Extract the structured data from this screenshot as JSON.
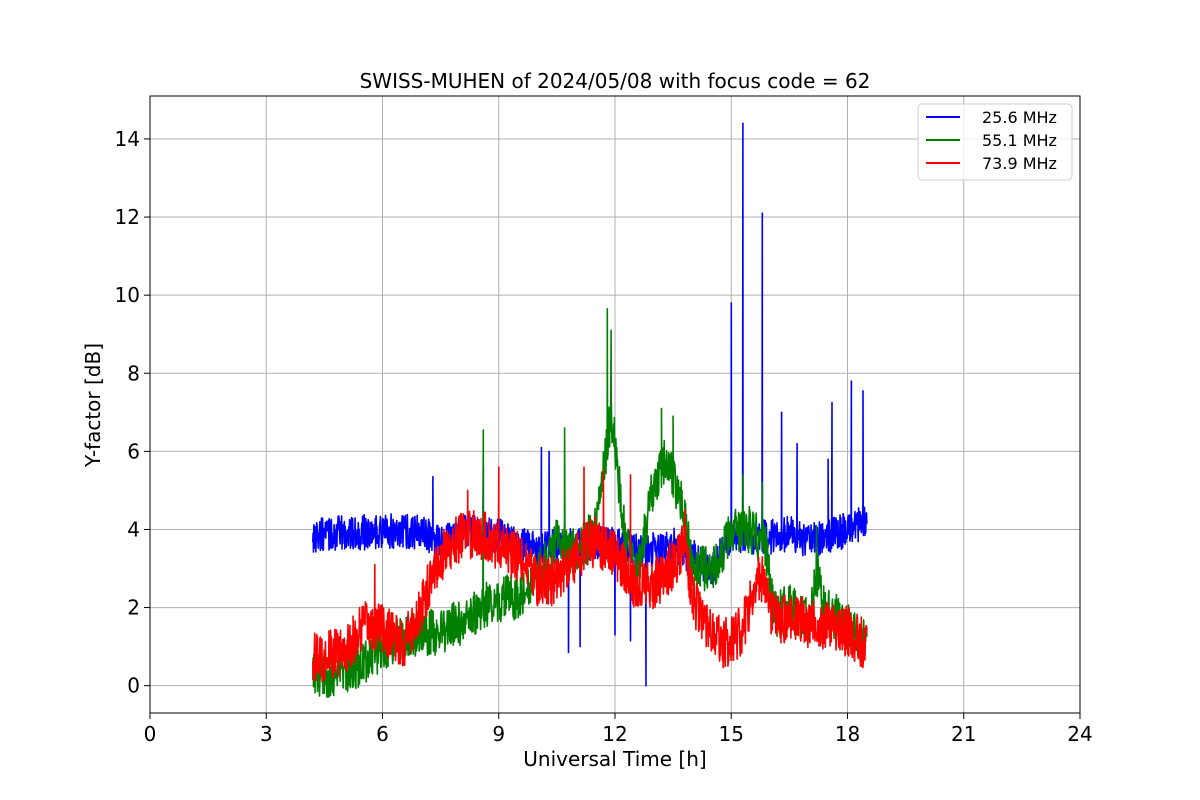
{
  "chart_data": {
    "type": "line",
    "title": "SWISS-MUHEN of 2024/05/08 with focus code = 62",
    "xlabel": "Universal Time [h]",
    "ylabel": "Y-factor [dB]",
    "xlim": [
      0,
      24
    ],
    "ylim": [
      -0.7,
      15.1
    ],
    "xticks": [
      0,
      3,
      6,
      9,
      12,
      15,
      18,
      21,
      24
    ],
    "yticks": [
      0,
      2,
      4,
      6,
      8,
      10,
      12,
      14
    ],
    "grid": true,
    "legend_position": "top-right",
    "series": [
      {
        "name": "25.6 MHz",
        "color": "#0000ff",
        "baseline": [
          [
            4.2,
            3.85
          ],
          [
            5.0,
            3.9
          ],
          [
            6.0,
            3.95
          ],
          [
            7.0,
            3.95
          ],
          [
            7.5,
            3.6
          ],
          [
            8.0,
            3.95
          ],
          [
            9.0,
            3.85
          ],
          [
            10.0,
            3.5
          ],
          [
            10.5,
            3.6
          ],
          [
            11.0,
            3.6
          ],
          [
            11.5,
            3.7
          ],
          [
            12.0,
            3.6
          ],
          [
            12.5,
            3.5
          ],
          [
            13.0,
            3.5
          ],
          [
            13.5,
            3.6
          ],
          [
            14.0,
            3.3
          ],
          [
            14.5,
            3.0
          ],
          [
            15.0,
            3.8
          ],
          [
            15.5,
            3.8
          ],
          [
            16.0,
            3.8
          ],
          [
            16.5,
            3.9
          ],
          [
            17.0,
            3.7
          ],
          [
            17.5,
            3.8
          ],
          [
            18.0,
            4.0
          ],
          [
            18.5,
            4.2
          ]
        ],
        "noise": 0.45,
        "spikes": [
          [
            7.3,
            5.35
          ],
          [
            8.6,
            5.6
          ],
          [
            10.1,
            6.1
          ],
          [
            10.3,
            6.0
          ],
          [
            10.8,
            0.85
          ],
          [
            11.1,
            1.0
          ],
          [
            12.0,
            1.3
          ],
          [
            12.4,
            1.15
          ],
          [
            12.8,
            0.0
          ],
          [
            15.0,
            9.8
          ],
          [
            15.3,
            14.4
          ],
          [
            15.8,
            12.1
          ],
          [
            16.3,
            7.0
          ],
          [
            16.7,
            6.2
          ],
          [
            17.5,
            5.8
          ],
          [
            17.6,
            7.25
          ],
          [
            18.1,
            7.8
          ],
          [
            18.4,
            7.55
          ]
        ]
      },
      {
        "name": "55.1 MHz",
        "color": "#008000",
        "baseline": [
          [
            4.2,
            0.3
          ],
          [
            4.5,
            0.25
          ],
          [
            5.0,
            0.4
          ],
          [
            5.5,
            0.6
          ],
          [
            6.0,
            1.0
          ],
          [
            6.5,
            1.2
          ],
          [
            7.0,
            1.3
          ],
          [
            7.5,
            1.4
          ],
          [
            8.0,
            1.6
          ],
          [
            8.5,
            2.0
          ],
          [
            9.0,
            2.2
          ],
          [
            9.5,
            2.3
          ],
          [
            10.0,
            2.8
          ],
          [
            10.5,
            3.8
          ],
          [
            11.0,
            3.4
          ],
          [
            11.5,
            4.0
          ],
          [
            11.9,
            7.0
          ],
          [
            12.3,
            3.5
          ],
          [
            12.6,
            3.0
          ],
          [
            13.0,
            5.2
          ],
          [
            13.3,
            5.8
          ],
          [
            13.7,
            4.8
          ],
          [
            14.0,
            3.0
          ],
          [
            14.5,
            3.0
          ],
          [
            15.0,
            3.9
          ],
          [
            15.5,
            4.0
          ],
          [
            15.9,
            3.5
          ],
          [
            16.1,
            1.8
          ],
          [
            16.5,
            2.0
          ],
          [
            17.0,
            1.6
          ],
          [
            17.2,
            3.0
          ],
          [
            17.4,
            1.9
          ],
          [
            18.0,
            1.6
          ],
          [
            18.5,
            1.1
          ]
        ],
        "noise": 0.6,
        "spikes": [
          [
            8.6,
            6.55
          ],
          [
            10.7,
            6.6
          ],
          [
            11.8,
            9.65
          ],
          [
            11.9,
            9.1
          ],
          [
            13.2,
            7.1
          ],
          [
            13.5,
            6.9
          ],
          [
            15.3,
            5.4
          ],
          [
            15.8,
            5.2
          ],
          [
            17.2,
            4.1
          ]
        ]
      },
      {
        "name": "73.9 MHz",
        "color": "#ff0000",
        "baseline": [
          [
            4.2,
            0.7
          ],
          [
            4.5,
            0.75
          ],
          [
            5.0,
            0.85
          ],
          [
            5.5,
            1.5
          ],
          [
            6.0,
            1.5
          ],
          [
            6.5,
            1.0
          ],
          [
            7.0,
            1.9
          ],
          [
            7.3,
            3.0
          ],
          [
            7.5,
            3.3
          ],
          [
            8.0,
            3.8
          ],
          [
            8.5,
            3.9
          ],
          [
            9.0,
            3.6
          ],
          [
            9.5,
            3.3
          ],
          [
            10.0,
            2.7
          ],
          [
            10.5,
            2.7
          ],
          [
            11.0,
            3.3
          ],
          [
            11.5,
            3.7
          ],
          [
            12.0,
            3.4
          ],
          [
            12.5,
            2.6
          ],
          [
            13.0,
            2.6
          ],
          [
            13.5,
            3.1
          ],
          [
            13.8,
            3.6
          ],
          [
            14.0,
            2.2
          ],
          [
            14.5,
            1.4
          ],
          [
            14.8,
            1.1
          ],
          [
            15.0,
            1.1
          ],
          [
            15.3,
            1.5
          ],
          [
            15.7,
            2.7
          ],
          [
            15.9,
            2.4
          ],
          [
            16.0,
            1.8
          ],
          [
            16.5,
            1.7
          ],
          [
            17.0,
            1.6
          ],
          [
            17.5,
            1.5
          ],
          [
            18.0,
            1.4
          ],
          [
            18.5,
            1.0
          ]
        ],
        "noise": 0.65,
        "spikes": [
          [
            5.8,
            3.1
          ],
          [
            8.2,
            5.0
          ],
          [
            9.0,
            5.6
          ],
          [
            11.2,
            5.6
          ],
          [
            11.7,
            5.5
          ],
          [
            12.4,
            5.4
          ],
          [
            13.8,
            4.5
          ],
          [
            15.8,
            3.3
          ]
        ]
      }
    ]
  }
}
